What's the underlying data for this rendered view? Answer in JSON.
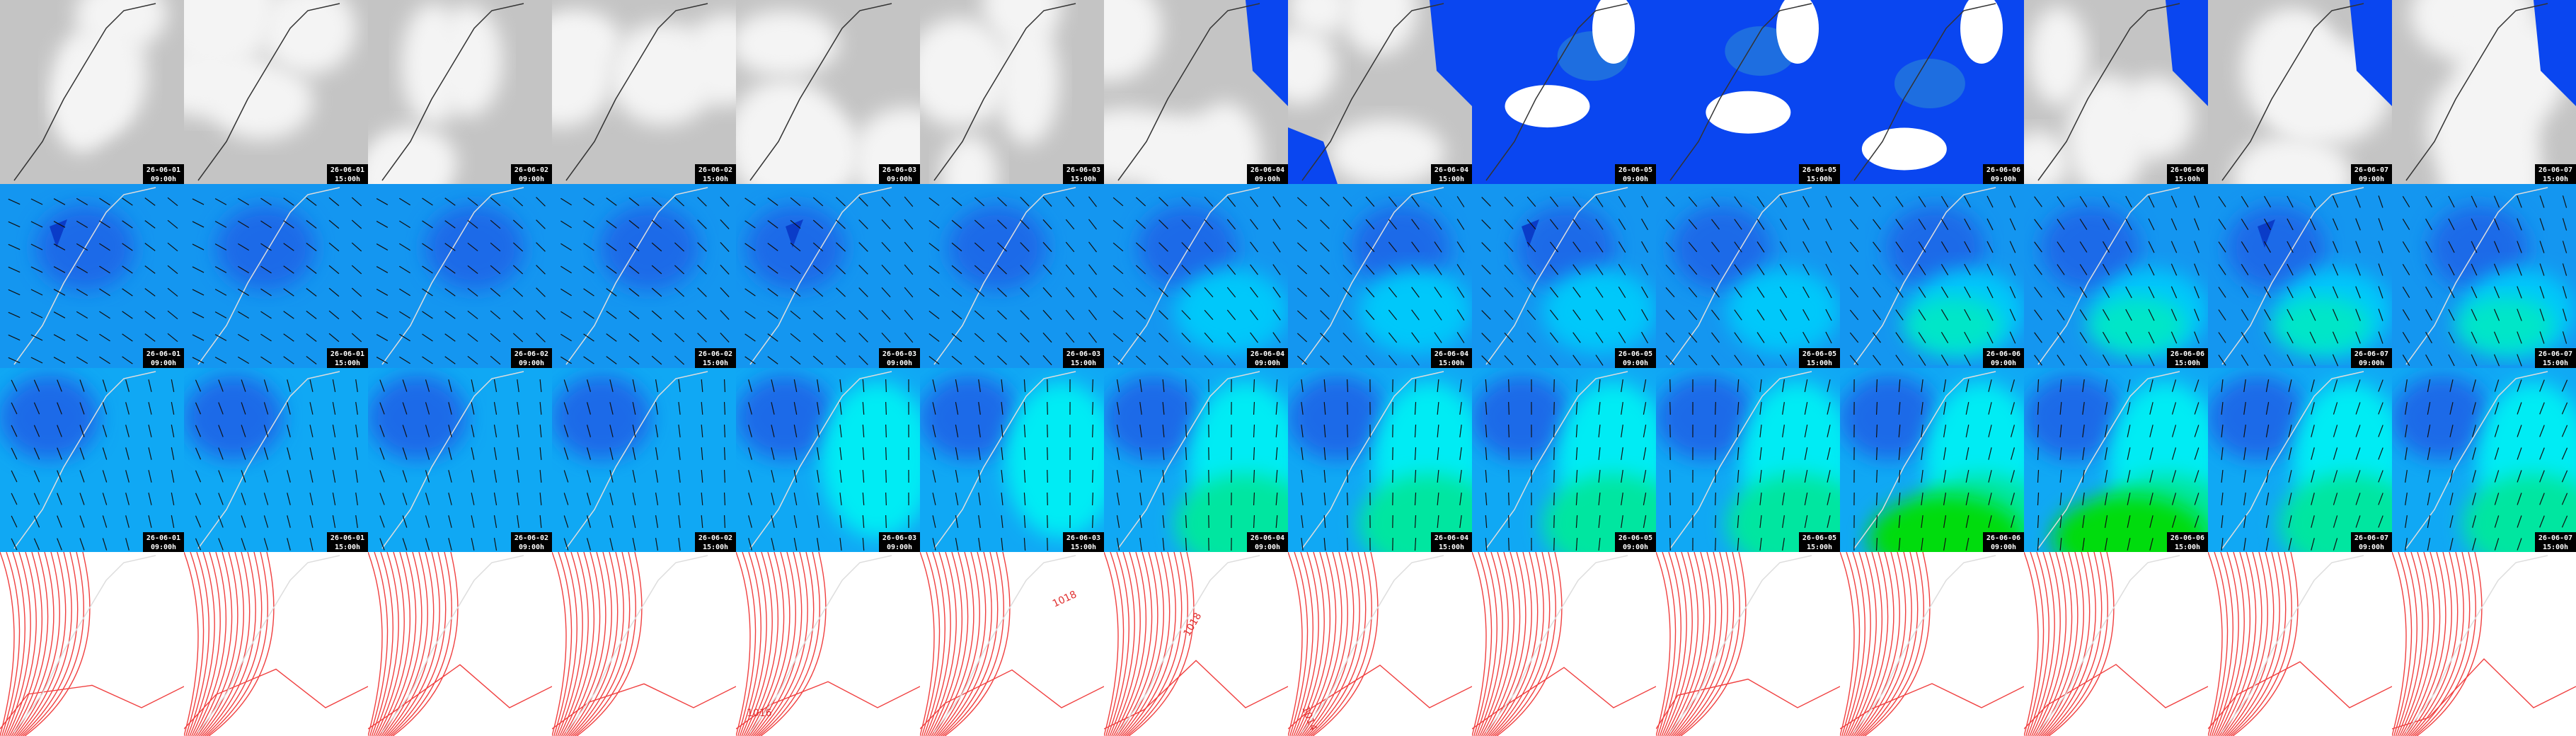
{
  "timestamps": [
    {
      "date": "26-06-01",
      "time": "09:00h"
    },
    {
      "date": "26-06-01",
      "time": "15:00h"
    },
    {
      "date": "26-06-02",
      "time": "09:00h"
    },
    {
      "date": "26-06-02",
      "time": "15:00h"
    },
    {
      "date": "26-06-03",
      "time": "09:00h"
    },
    {
      "date": "26-06-03",
      "time": "15:00h"
    },
    {
      "date": "26-06-04",
      "time": "09:00h"
    },
    {
      "date": "26-06-04",
      "time": "15:00h"
    },
    {
      "date": "26-06-05",
      "time": "09:00h"
    },
    {
      "date": "26-06-05",
      "time": "15:00h"
    },
    {
      "date": "26-06-06",
      "time": "09:00h"
    },
    {
      "date": "26-06-06",
      "time": "15:00h"
    },
    {
      "date": "26-06-07",
      "time": "09:00h"
    },
    {
      "date": "26-06-07",
      "time": "15:00h"
    }
  ],
  "contour_labels": [
    "1016",
    "1018",
    "1018",
    "1014"
  ]
}
